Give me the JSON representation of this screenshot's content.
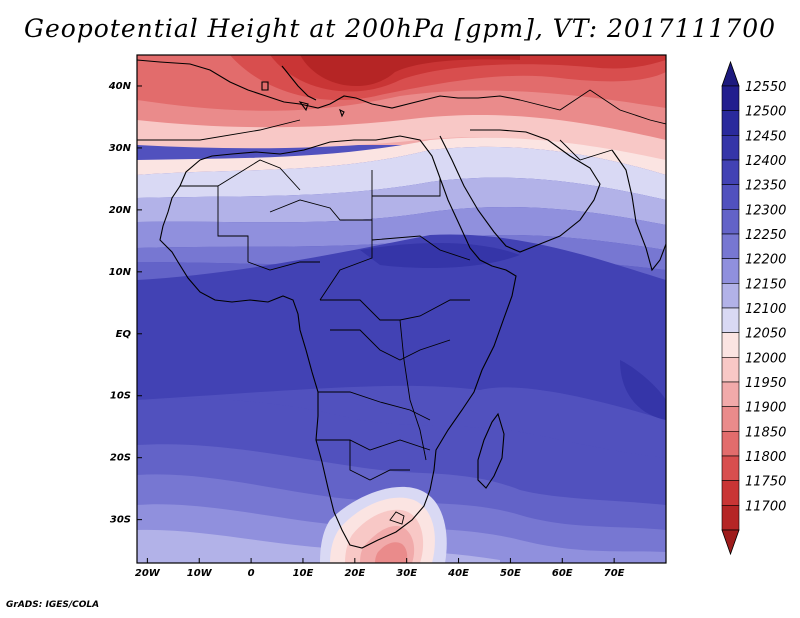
{
  "title": "Geopotential Height at 200hPa [gpm], VT: 2017111700",
  "credit": "GrADS: IGES/COLA",
  "map": {
    "projection": "latlon",
    "lon_range": [
      -22,
      80
    ],
    "lat_range": [
      -37,
      45
    ],
    "lat_labels": [
      {
        "lat": 40,
        "text": "40N"
      },
      {
        "lat": 30,
        "text": "30N"
      },
      {
        "lat": 20,
        "text": "20N"
      },
      {
        "lat": 10,
        "text": "10N"
      },
      {
        "lat": 0,
        "text": "EQ"
      },
      {
        "lat": -10,
        "text": "10S"
      },
      {
        "lat": -20,
        "text": "20S"
      },
      {
        "lat": -30,
        "text": "30S"
      }
    ],
    "lon_labels": [
      {
        "lon": -20,
        "text": "20W"
      },
      {
        "lon": -10,
        "text": "10W"
      },
      {
        "lon": 0,
        "text": "0"
      },
      {
        "lon": 10,
        "text": "10E"
      },
      {
        "lon": 20,
        "text": "20E"
      },
      {
        "lon": 30,
        "text": "30E"
      },
      {
        "lon": 40,
        "text": "40E"
      },
      {
        "lon": 50,
        "text": "50E"
      },
      {
        "lon": 60,
        "text": "60E"
      },
      {
        "lon": 70,
        "text": "70E"
      }
    ]
  },
  "colorbar": {
    "levels": [
      {
        "label": "12550",
        "color": "#221e8e"
      },
      {
        "label": "12500",
        "color": "#2a2a9c"
      },
      {
        "label": "12450",
        "color": "#3535a8"
      },
      {
        "label": "12400",
        "color": "#4242b4"
      },
      {
        "label": "12350",
        "color": "#5151be"
      },
      {
        "label": "12300",
        "color": "#6363c8"
      },
      {
        "label": "12250",
        "color": "#7777d2"
      },
      {
        "label": "12200",
        "color": "#9090dd"
      },
      {
        "label": "12150",
        "color": "#b2b2e8"
      },
      {
        "label": "12100",
        "color": "#d9d9f4"
      },
      {
        "label": "12050",
        "color": "#fbe4e2"
      },
      {
        "label": "12000",
        "color": "#f8c8c6"
      },
      {
        "label": "11950",
        "color": "#f1aaaa"
      },
      {
        "label": "11900",
        "color": "#ea8b8b"
      },
      {
        "label": "11850",
        "color": "#e26c6c"
      },
      {
        "label": "11800",
        "color": "#d84e4e"
      },
      {
        "label": "11750",
        "color": "#c93535"
      },
      {
        "label": "11700",
        "color": "#b52525"
      }
    ],
    "top_arrow_color": "#1d1a7e",
    "bottom_arrow_color": "#9e1c1c"
  }
}
